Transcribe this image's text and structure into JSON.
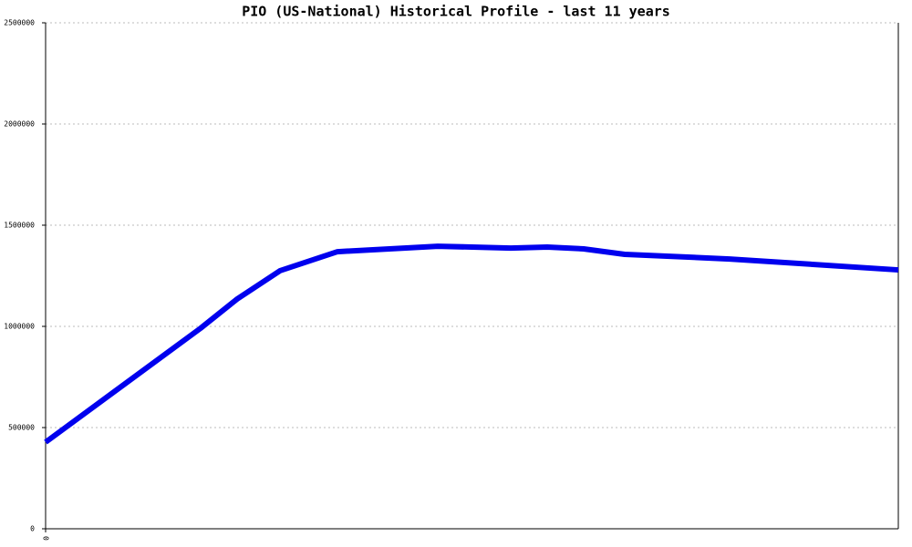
{
  "chart_data": {
    "type": "line",
    "title": "PIO (US-National) Historical Profile - last 11 years",
    "x": [
      0,
      170,
      210,
      257,
      320,
      430,
      510,
      550,
      590,
      635,
      750,
      935
    ],
    "series": [
      {
        "color": "#0000ee",
        "values": [
          428000,
          991000,
          1135000,
          1275000,
          1369000,
          1396000,
          1387000,
          1392000,
          1383000,
          1356000,
          1333000,
          1279000
        ]
      }
    ],
    "xlim": [
      0,
      935
    ],
    "xticks": [
      0
    ],
    "ylim": [
      0,
      2500000
    ],
    "yticks": [
      0,
      500000,
      1000000,
      1500000,
      2000000,
      2500000
    ],
    "grid": true
  }
}
